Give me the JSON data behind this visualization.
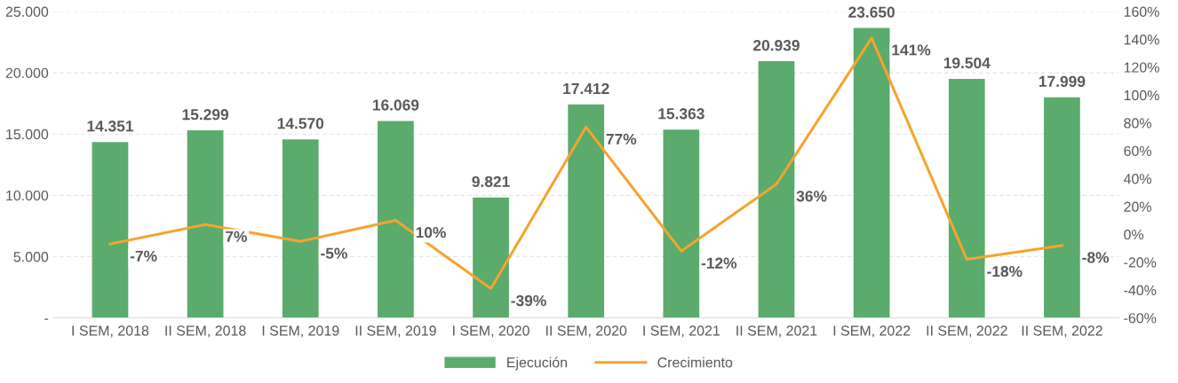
{
  "chart_data": {
    "type": "bar",
    "categories": [
      "I SEM, 2018",
      "II SEM, 2018",
      "I SEM, 2019",
      "II SEM, 2019",
      "I SEM, 2020",
      "II SEM, 2020",
      "I SEM, 2021",
      "II SEM, 2021",
      "I SEM, 2022",
      "II SEM, 2022",
      "II SEM, 2022"
    ],
    "series": [
      {
        "name": "Ejecución",
        "color": "#5aab6c",
        "values": [
          14351,
          15299,
          14570,
          16069,
          9821,
          17412,
          15363,
          20939,
          23650,
          19504,
          17999
        ],
        "value_labels": [
          "14.351",
          "15.299",
          "14.570",
          "16.069",
          "9.821",
          "17.412",
          "15.363",
          "20.939",
          "23.650",
          "19.504",
          "17.999"
        ]
      },
      {
        "name": "Crecimiento",
        "type": "line",
        "axis": "y2",
        "color": "#f5a42f",
        "values": [
          -7,
          7,
          -5,
          10,
          -39,
          77,
          -12,
          36,
          141,
          -18,
          -8
        ],
        "value_labels": [
          "-7%",
          "7%",
          "-5%",
          "10%",
          "-39%",
          "77%",
          "-12%",
          "36%",
          "141%",
          "-18%",
          "-8%"
        ]
      }
    ],
    "ylim": [
      0,
      25000
    ],
    "yticks": [
      {
        "value": 0,
        "label": "-"
      },
      {
        "value": 5000,
        "label": "5.000"
      },
      {
        "value": 10000,
        "label": "10.000"
      },
      {
        "value": 15000,
        "label": "15.000"
      },
      {
        "value": 20000,
        "label": "20.000"
      },
      {
        "value": 25000,
        "label": "25.000"
      }
    ],
    "y2lim": [
      -60,
      160
    ],
    "y2ticks": [
      {
        "value": -60,
        "label": "-60%"
      },
      {
        "value": -40,
        "label": "-40%"
      },
      {
        "value": -20,
        "label": "-20%"
      },
      {
        "value": 0,
        "label": "0%"
      },
      {
        "value": 20,
        "label": "20%"
      },
      {
        "value": 40,
        "label": "40%"
      },
      {
        "value": 60,
        "label": "60%"
      },
      {
        "value": 80,
        "label": "80%"
      },
      {
        "value": 100,
        "label": "100%"
      },
      {
        "value": 120,
        "label": "120%"
      },
      {
        "value": 140,
        "label": "140%"
      },
      {
        "value": 160,
        "label": "160%"
      }
    ],
    "grid": "y",
    "legend": "bottom",
    "marker": "none",
    "line_style": "solid"
  }
}
